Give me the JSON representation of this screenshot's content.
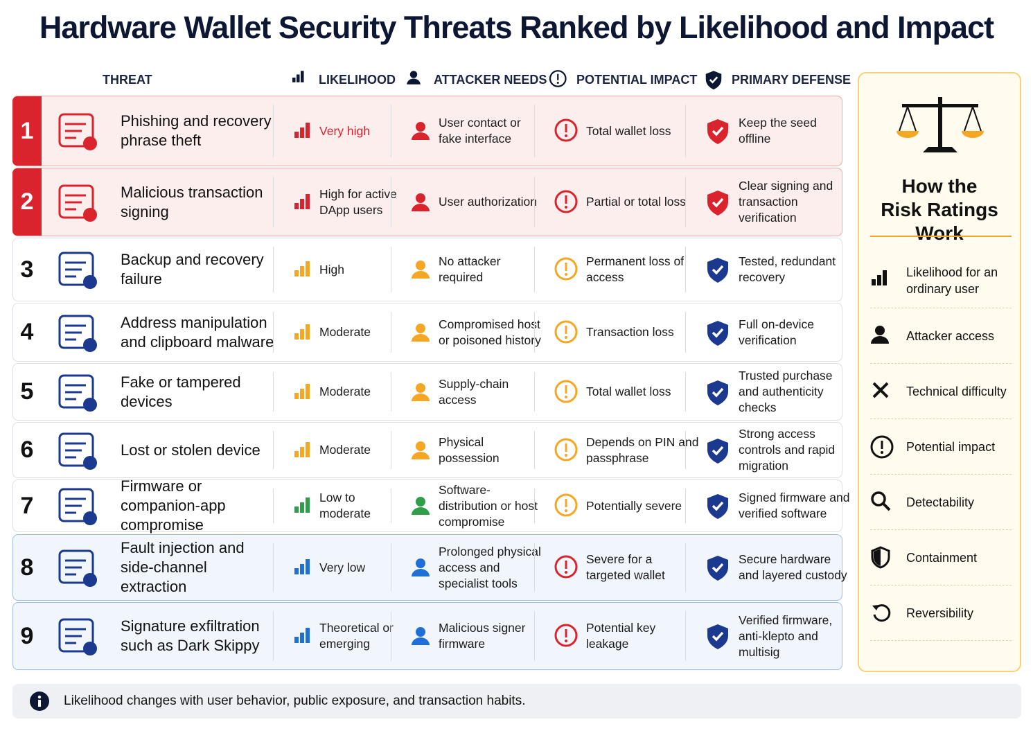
{
  "title": "Hardware Wallet Security Threats Ranked by Likelihood and Impact",
  "columns": [
    "THREAT",
    "LIKELIHOOD",
    "ATTACKER NEEDS",
    "POTENTIAL IMPACT",
    "PRIMARY DEFENSE"
  ],
  "rows": [
    {
      "rank": 1,
      "threat": "Phishing and recovery phrase theft",
      "likelihood": "Very high",
      "attacker_needs": "User contact or fake interface",
      "impact": "Total wallet loss",
      "defense": "Keep the seed offline",
      "accent": "#d9232d",
      "likelihood_color": "#d9232d",
      "attacker_color": "#d9232d",
      "impact_color": "#d9232d",
      "defense_color": "#d9232d",
      "tint": "#fdeeee",
      "border": "#f2a7a9"
    },
    {
      "rank": 2,
      "threat": "Malicious transaction signing",
      "likelihood": "High for active DApp users",
      "attacker_needs": "User authorization",
      "impact": "Partial or total loss",
      "defense": "Clear signing and transaction verification",
      "accent": "#d9232d",
      "likelihood_color": "#d9232d",
      "attacker_color": "#d9232d",
      "impact_color": "#d9232d",
      "defense_color": "#d9232d",
      "tint": "#fdeeee",
      "border": "#f2a7a9"
    },
    {
      "rank": 3,
      "threat": "Backup and recovery failure",
      "likelihood": "High",
      "attacker_needs": "No attacker required",
      "impact": "Permanent loss of access",
      "defense": "Tested, redundant recovery",
      "accent": "#1b3a8f",
      "likelihood_color": "#f5a623",
      "attacker_color": "#f5a623",
      "impact_color": "#f5a623",
      "defense_color": "#1b3a8f",
      "tint": "#ffffff",
      "border": "#dcdfe6"
    },
    {
      "rank": 4,
      "threat": "Address manipulation and clipboard malware",
      "likelihood": "Moderate",
      "attacker_needs": "Compromised host or poisoned history",
      "impact": "Transaction loss",
      "defense": "Full on-device verification",
      "accent": "#1b3a8f",
      "likelihood_color": "#f5a623",
      "attacker_color": "#f5a623",
      "impact_color": "#f5a623",
      "defense_color": "#1b3a8f",
      "tint": "#ffffff",
      "border": "#dcdfe6"
    },
    {
      "rank": 5,
      "threat": "Fake or tampered devices",
      "likelihood": "Moderate",
      "attacker_needs": "Supply-chain access",
      "impact": "Total wallet loss",
      "defense": "Trusted purchase and authenticity checks",
      "accent": "#1b3a8f",
      "likelihood_color": "#f5a623",
      "attacker_color": "#f5a623",
      "impact_color": "#f5a623",
      "defense_color": "#1b3a8f",
      "tint": "#ffffff",
      "border": "#dcdfe6"
    },
    {
      "rank": 6,
      "threat": "Lost or stolen device",
      "likelihood": "Moderate",
      "attacker_needs": "Physical possession",
      "impact": "Depends on PIN and passphrase",
      "defense": "Strong access controls and rapid migration",
      "accent": "#1b3a8f",
      "likelihood_color": "#f5a623",
      "attacker_color": "#f5a623",
      "impact_color": "#f5a623",
      "defense_color": "#1b3a8f",
      "tint": "#ffffff",
      "border": "#dcdfe6"
    },
    {
      "rank": 7,
      "threat": "Firmware or companion-app compromise",
      "likelihood": "Low to moderate",
      "attacker_needs": "Software-distribution or host compromise",
      "impact": "Potentially severe",
      "defense": "Signed firmware and verified software",
      "accent": "#1b3a8f",
      "likelihood_color": "#2e9e48",
      "attacker_color": "#2e9e48",
      "impact_color": "#f5a623",
      "defense_color": "#1b3a8f",
      "tint": "#ffffff",
      "border": "#dcdfe6"
    },
    {
      "rank": 8,
      "threat": "Fault injection and side-channel extraction",
      "likelihood": "Very low",
      "attacker_needs": "Prolonged physical access and specialist tools",
      "impact": "Severe for a targeted wallet",
      "defense": "Secure hardware and layered custody",
      "accent": "#1b3a8f",
      "likelihood_color": "#1f6fd6",
      "attacker_color": "#1f6fd6",
      "impact_color": "#d9232d",
      "defense_color": "#1b3a8f",
      "tint": "#f1f6fd",
      "border": "#9dbde8"
    },
    {
      "rank": 9,
      "threat": "Signature exfiltration such as Dark Skippy",
      "likelihood": "Theoretical or emerging",
      "attacker_needs": "Malicious signer firmware",
      "impact": "Potential key leakage",
      "defense": "Verified firmware, anti-klepto and multisig",
      "accent": "#1b3a8f",
      "likelihood_color": "#1f6fd6",
      "attacker_color": "#1f6fd6",
      "impact_color": "#d9232d",
      "defense_color": "#1b3a8f",
      "tint": "#f1f6fd",
      "border": "#9dbde8"
    }
  ],
  "sidebar": {
    "title": "How the Risk Ratings Work",
    "items": [
      "Likelihood for an ordinary user",
      "Attacker access",
      "Technical difficulty",
      "Potential impact",
      "Detectability",
      "Containment",
      "Reversibility"
    ]
  },
  "note": "Likelihood changes with user behavior, public exposure, and transaction habits."
}
